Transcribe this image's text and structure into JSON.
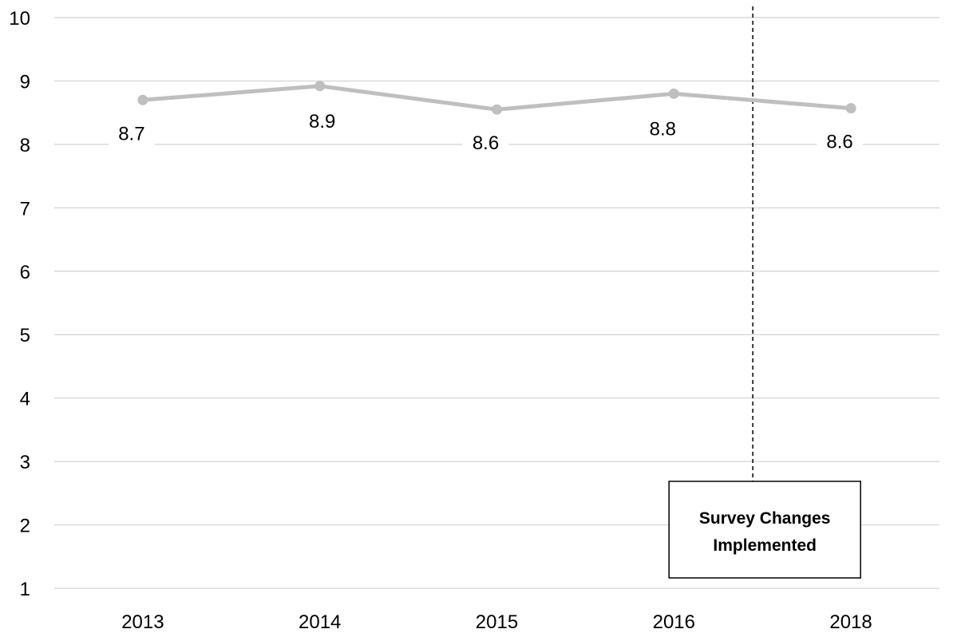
{
  "chart_data": {
    "type": "line",
    "categories": [
      "2013",
      "2014",
      "2015",
      "2016",
      "2018"
    ],
    "series": [
      {
        "values": [
          8.7,
          8.92,
          8.55,
          8.8,
          8.57
        ],
        "labels": [
          "8.7",
          "8.9",
          "8.6",
          "8.8",
          "8.6"
        ]
      }
    ],
    "ylim": [
      1,
      10
    ],
    "yticks": [
      "1",
      "2",
      "3",
      "4",
      "5",
      "6",
      "7",
      "8",
      "9",
      "10"
    ],
    "grid": true,
    "title": "",
    "xlabel": "",
    "ylabel": "",
    "colors": {
      "series": "#bfbfbf",
      "grid": "#d9d9d9"
    },
    "annotation": {
      "text_line1": "Survey Changes",
      "text_line2": "Implemented",
      "position_between": [
        "2016",
        "2018"
      ],
      "style": "dashed vertical line"
    }
  }
}
